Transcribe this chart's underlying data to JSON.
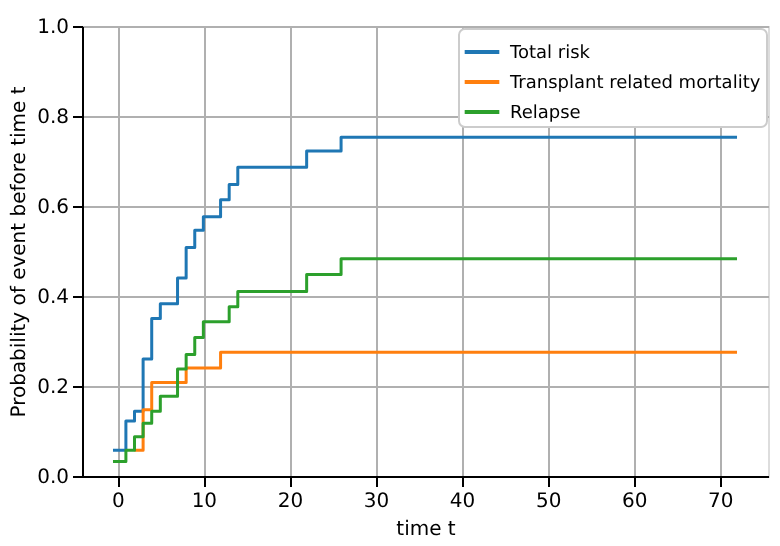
{
  "chart_data": {
    "type": "step",
    "xlabel": "time t",
    "ylabel": "Probability of event before time t",
    "xlim": [
      -4.1,
      75.6
    ],
    "xticks": [
      0,
      10,
      20,
      30,
      40,
      50,
      60,
      70
    ],
    "ylim": [
      0,
      1
    ],
    "yticks": [
      {
        "value": 0,
        "label": "0.0"
      },
      {
        "value": 0.2,
        "label": "0.2"
      },
      {
        "value": 0.4,
        "label": "0.4"
      },
      {
        "value": 0.6,
        "label": "0.6"
      },
      {
        "value": 0.8,
        "label": "0.8"
      },
      {
        "value": 1,
        "label": "1.0"
      }
    ],
    "grid": true,
    "legend": "top right",
    "line_style": "solid",
    "marker": "none",
    "series": [
      {
        "name": "Total risk",
        "color": "#1f77b4",
        "x": [
          -0.5,
          1,
          2,
          3,
          4,
          5,
          7,
          8,
          9,
          10,
          12,
          13,
          14,
          22,
          26,
          72
        ],
        "values": [
          0.057,
          0.122,
          0.144,
          0.26,
          0.35,
          0.383,
          0.44,
          0.508,
          0.546,
          0.576,
          0.614,
          0.648,
          0.686,
          0.722,
          0.753,
          0.753
        ]
      },
      {
        "name": "Transplant related mortality",
        "color": "#ff7f0e",
        "x": [
          2,
          3,
          4,
          8,
          12,
          72
        ],
        "values": [
          0.057,
          0.147,
          0.208,
          0.24,
          0.275,
          0.275
        ]
      },
      {
        "name": "Relapse",
        "color": "#2ca02c",
        "x": [
          -0.5,
          1,
          2,
          3,
          4,
          5,
          7,
          8,
          9,
          10,
          13,
          14,
          22,
          26,
          72
        ],
        "values": [
          0.032,
          0.057,
          0.087,
          0.117,
          0.144,
          0.177,
          0.238,
          0.27,
          0.308,
          0.343,
          0.376,
          0.41,
          0.448,
          0.483,
          0.483
        ]
      }
    ]
  }
}
